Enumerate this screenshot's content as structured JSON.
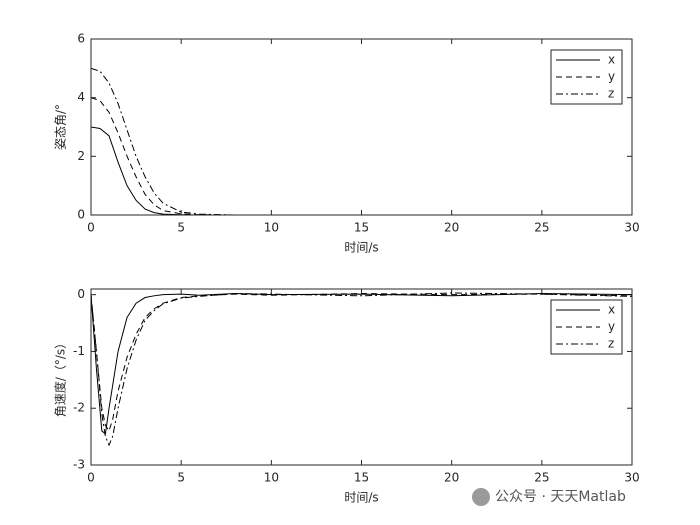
{
  "chart_data": [
    {
      "type": "line",
      "xlabel": "时间/s",
      "ylabel": "姿态角/°",
      "x": [
        0,
        0.5,
        1,
        1.5,
        2,
        2.5,
        3,
        3.5,
        4,
        5,
        6,
        8,
        10,
        15,
        20,
        25,
        30
      ],
      "series": [
        {
          "name": "x",
          "color": "#000000",
          "dash": "solid",
          "values": [
            3,
            2.95,
            2.7,
            1.8,
            1.0,
            0.5,
            0.2,
            0.08,
            0.03,
            0.01,
            0,
            0,
            0,
            0,
            0,
            0,
            0
          ]
        },
        {
          "name": "y",
          "color": "#000000",
          "dash": "dashed",
          "values": [
            4,
            3.9,
            3.5,
            2.8,
            2.0,
            1.3,
            0.7,
            0.35,
            0.15,
            0.04,
            0.01,
            0,
            0,
            0,
            0,
            0,
            0
          ]
        },
        {
          "name": "z",
          "color": "#000000",
          "dash": "dashdot",
          "values": [
            5,
            4.9,
            4.5,
            3.8,
            2.9,
            2.0,
            1.3,
            0.75,
            0.4,
            0.1,
            0.03,
            0,
            0,
            0,
            0,
            0,
            0
          ]
        }
      ],
      "xlim": [
        0,
        30
      ],
      "xticks": [
        0,
        5,
        10,
        15,
        20,
        25,
        30
      ],
      "ylim": [
        0,
        6
      ],
      "yticks": [
        0,
        2,
        4,
        6
      ],
      "legend": "upper right"
    },
    {
      "type": "line",
      "xlabel": "时间/s",
      "ylabel": "角速度/（°/s）",
      "x": [
        0,
        0.3,
        0.6,
        0.8,
        1,
        1.2,
        1.5,
        2,
        2.5,
        3,
        3.5,
        4,
        5,
        6,
        8,
        10,
        15,
        20,
        25,
        30
      ],
      "series": [
        {
          "name": "x",
          "color": "#000000",
          "dash": "solid",
          "values": [
            0,
            -1.3,
            -2.4,
            -2.45,
            -2.0,
            -1.6,
            -1.0,
            -0.4,
            -0.15,
            -0.05,
            -0.02,
            0,
            0.01,
            -0.01,
            0.02,
            0,
            0.01,
            -0.02,
            0.02,
            0
          ]
        },
        {
          "name": "y",
          "color": "#000000",
          "dash": "dashed",
          "values": [
            0,
            -1.0,
            -2.0,
            -2.3,
            -2.4,
            -2.2,
            -1.7,
            -1.1,
            -0.7,
            -0.4,
            -0.25,
            -0.15,
            -0.05,
            -0.02,
            0.01,
            -0.01,
            0.02,
            0,
            0.01,
            -0.02
          ]
        },
        {
          "name": "z",
          "color": "#000000",
          "dash": "dashdot",
          "values": [
            0,
            -1.0,
            -2.1,
            -2.5,
            -2.65,
            -2.5,
            -2.0,
            -1.3,
            -0.8,
            -0.45,
            -0.28,
            -0.16,
            -0.06,
            -0.03,
            0.02,
            0.01,
            -0.02,
            0.03,
            0.01,
            -0.03
          ]
        }
      ],
      "xlim": [
        0,
        30
      ],
      "xticks": [
        0,
        5,
        10,
        15,
        20,
        25,
        30
      ],
      "ylim": [
        -3,
        0.1
      ],
      "yticks": [
        -3,
        -2,
        -1,
        0
      ],
      "legend": "upper right"
    }
  ],
  "watermark": "公众号 · 天天Matlab"
}
